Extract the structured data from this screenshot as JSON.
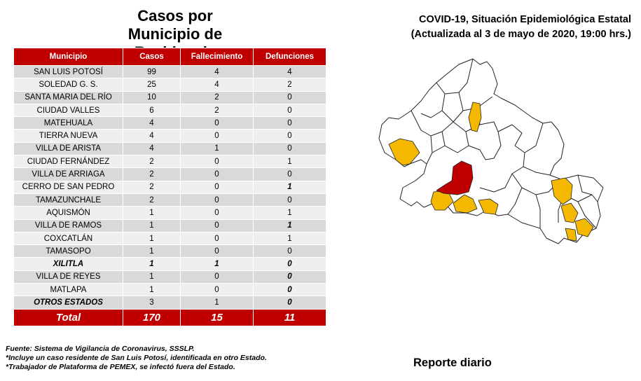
{
  "left_title": [
    "Casos por",
    "Municipio de",
    "Residencia"
  ],
  "table": {
    "headers": [
      "Municipio",
      "Casos",
      "Fallecimiento",
      "Defunciones"
    ],
    "rows": [
      {
        "municipio": "SAN LUIS POTOSÍ",
        "casos": "99",
        "fall": "4",
        "def": "4"
      },
      {
        "municipio": "SOLEDAD G. S.",
        "casos": "25",
        "fall": "4",
        "def": "2"
      },
      {
        "municipio": "SANTA MARIA DEL RÍO",
        "casos": "10",
        "fall": "2",
        "def": "0"
      },
      {
        "municipio": "CIUDAD VALLES",
        "casos": "6",
        "fall": "2",
        "def": "0"
      },
      {
        "municipio": "MATEHUALA",
        "casos": "4",
        "fall": "0",
        "def": "0"
      },
      {
        "municipio": "TIERRA NUEVA",
        "casos": "4",
        "fall": "0",
        "def": "0"
      },
      {
        "municipio": "VILLA DE ARISTA",
        "casos": "4",
        "fall": "1",
        "def": "0"
      },
      {
        "municipio": "CIUDAD FERNÁNDEZ",
        "casos": "2",
        "fall": "0",
        "def": "1"
      },
      {
        "municipio": "VILLA DE ARRIAGA",
        "casos": "2",
        "fall": "0",
        "def": "0"
      },
      {
        "municipio": "CERRO DE SAN PEDRO",
        "casos": "2",
        "fall": "0",
        "def": "1"
      },
      {
        "municipio": "TAMAZUNCHALE",
        "casos": "2",
        "fall": "0",
        "def": "0"
      },
      {
        "municipio": "AQUISMÓN",
        "casos": "1",
        "fall": "0",
        "def": "1"
      },
      {
        "municipio": "VILLA DE RAMOS",
        "casos": "1",
        "fall": "0",
        "def": "1"
      },
      {
        "municipio": "COXCATLÁN",
        "casos": "1",
        "fall": "0",
        "def": "1"
      },
      {
        "municipio": "TAMASOPO",
        "casos": "1",
        "fall": "0",
        "def": "0"
      },
      {
        "municipio": "XILITLA",
        "casos": "1",
        "fall": "1",
        "def": "0"
      },
      {
        "municipio": "VILLA DE REYES",
        "casos": "1",
        "fall": "0",
        "def": "0"
      },
      {
        "municipio": "MATLAPA",
        "casos": "1",
        "fall": "0",
        "def": "0"
      },
      {
        "municipio": "OTROS ESTADOS",
        "casos": "3",
        "fall": "1",
        "def": "0"
      }
    ],
    "total": {
      "label": "Total",
      "casos": "170",
      "fall": "15",
      "def": "11"
    }
  },
  "right_title": [
    "COVID-19, Situación Epidemiológica Estatal",
    "(Actualizada al 3 de mayo de 2020, 19:00 hrs.)"
  ],
  "footnotes": [
    "Fuente: Sistema de Vigilancia de Coronavirus, SSSLP.",
    "*Incluye un caso residente de San Luis Potosí, identificada en otro Estado.",
    "*Trabajador de Plataforma de PEMEX, se infectó fuera del Estado."
  ],
  "report_label": "Reporte diario",
  "colors": {
    "header_red": "#c00000",
    "map_yellow": "#f5b800",
    "map_red": "#c00000"
  }
}
